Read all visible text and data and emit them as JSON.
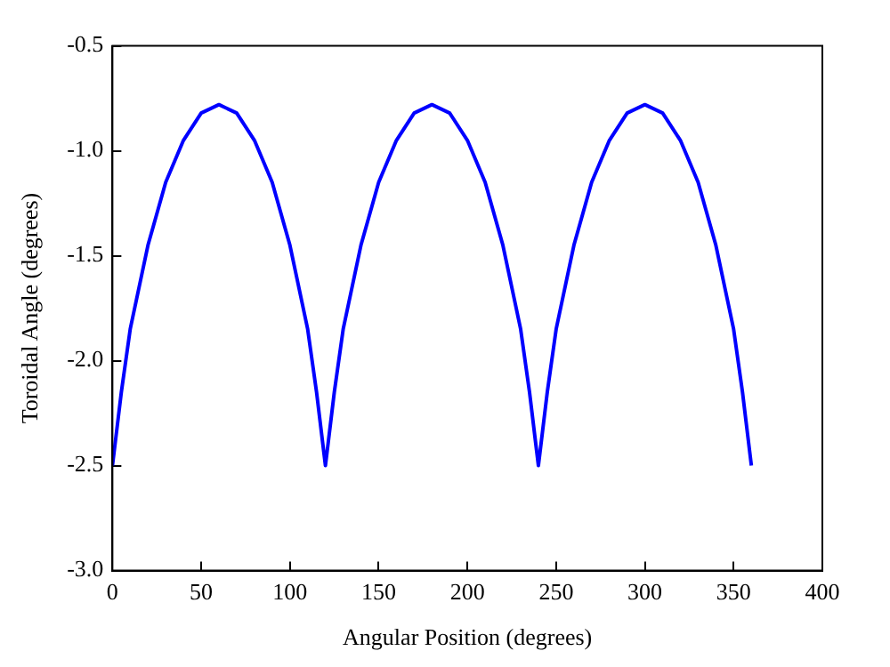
{
  "chart_data": {
    "type": "line",
    "xlabel": "Angular Position (degrees)",
    "ylabel": "Toroidal Angle (degrees)",
    "x": [
      0,
      5,
      10,
      20,
      30,
      40,
      50,
      60,
      70,
      80,
      90,
      100,
      110,
      115,
      120,
      125,
      130,
      140,
      150,
      160,
      170,
      180,
      190,
      200,
      210,
      220,
      230,
      235,
      240,
      245,
      250,
      260,
      270,
      280,
      290,
      300,
      310,
      320,
      330,
      340,
      350,
      355,
      360
    ],
    "series": [
      {
        "color": "#0000ff",
        "values": [
          -2.5,
          -2.15,
          -1.85,
          -1.45,
          -1.15,
          -0.95,
          -0.82,
          -0.78,
          -0.82,
          -0.95,
          -1.15,
          -1.45,
          -1.85,
          -2.15,
          -2.5,
          -2.15,
          -1.85,
          -1.45,
          -1.15,
          -0.95,
          -0.82,
          -0.78,
          -0.82,
          -0.95,
          -1.15,
          -1.45,
          -1.85,
          -2.15,
          -2.5,
          -2.15,
          -1.85,
          -1.45,
          -1.15,
          -0.95,
          -0.82,
          -0.78,
          -0.82,
          -0.95,
          -1.15,
          -1.45,
          -1.85,
          -2.15,
          -2.5
        ]
      }
    ],
    "xlim": [
      0,
      400
    ],
    "xticks": [
      0,
      50,
      100,
      150,
      200,
      250,
      300,
      350,
      400
    ],
    "ylim": [
      -3,
      -0.5
    ],
    "yticks": [
      {
        "value": -3,
        "label": "-3.0"
      },
      -2.5,
      {
        "value": -2,
        "label": "-2.0"
      },
      -1.5,
      {
        "value": -1,
        "label": "-1.0"
      },
      -0.5
    ],
    "grid": false,
    "legend": false,
    "marker": "none",
    "line_style": "solid"
  }
}
